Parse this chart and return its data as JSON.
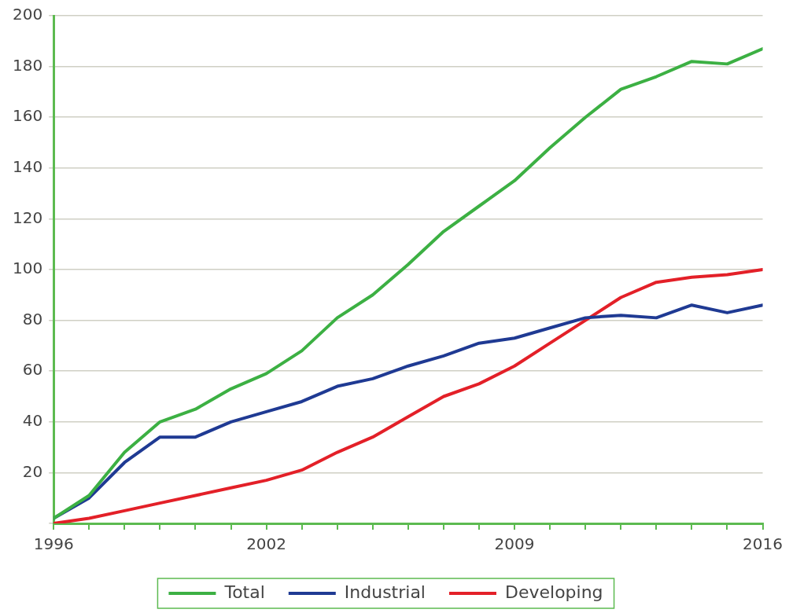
{
  "chart_data": {
    "type": "line",
    "x": [
      1996,
      1997,
      1998,
      1999,
      2000,
      2001,
      2002,
      2003,
      2004,
      2005,
      2006,
      2007,
      2008,
      2009,
      2010,
      2011,
      2012,
      2013,
      2014,
      2015,
      2016
    ],
    "series": [
      {
        "name": "Total",
        "color": "#3cb043",
        "values": [
          2,
          11,
          28,
          40,
          45,
          53,
          59,
          68,
          81,
          90,
          102,
          115,
          125,
          135,
          148,
          160,
          171,
          176,
          182,
          181,
          187
        ]
      },
      {
        "name": "Industrial",
        "color": "#1f3a93",
        "values": [
          2,
          10,
          24,
          34,
          34,
          40,
          44,
          48,
          54,
          57,
          62,
          66,
          71,
          73,
          77,
          81,
          82,
          81,
          86,
          83,
          86
        ]
      },
      {
        "name": "Developing",
        "color": "#e32028",
        "values": [
          0,
          2,
          5,
          8,
          11,
          14,
          17,
          21,
          28,
          34,
          42,
          50,
          55,
          62,
          71,
          80,
          89,
          95,
          97,
          98,
          100
        ]
      }
    ],
    "xlim": [
      1996,
      2016
    ],
    "xticks": [
      1996,
      {
        "value": 1997,
        "label": null
      },
      {
        "value": 1998,
        "label": null
      },
      {
        "value": 1999,
        "label": null
      },
      {
        "value": 2000,
        "label": null
      },
      {
        "value": 2001,
        "label": null
      },
      2002,
      {
        "value": 2003,
        "label": null
      },
      {
        "value": 2004,
        "label": null
      },
      {
        "value": 2005,
        "label": null
      },
      {
        "value": 2006,
        "label": null
      },
      {
        "value": 2007,
        "label": null
      },
      {
        "value": 2008,
        "label": null
      },
      2009,
      {
        "value": 2010,
        "label": null
      },
      {
        "value": 2011,
        "label": null
      },
      {
        "value": 2012,
        "label": null
      },
      {
        "value": 2013,
        "label": null
      },
      {
        "value": 2014,
        "label": null
      },
      {
        "value": 2015,
        "label": null
      },
      2016
    ],
    "ylim": [
      0,
      200
    ],
    "yticks": [
      {
        "value": 0,
        "label": null
      },
      20,
      40,
      60,
      80,
      100,
      120,
      140,
      160,
      180,
      200
    ],
    "grid": "y",
    "legend": "bottom",
    "marker": "none",
    "line_style": "solid"
  }
}
